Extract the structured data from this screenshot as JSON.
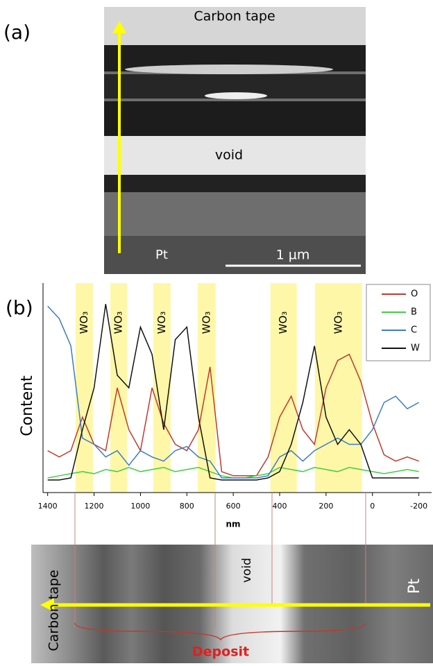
{
  "panel_a": {
    "label": "(a)",
    "top_text": "Carbon tape",
    "void_text": "void",
    "bottom_text": "Pt",
    "scale_bar": "1 µm"
  },
  "chart_data": {
    "type": "line",
    "panel_label": "(b)",
    "x_label": "nm",
    "y_label": "Content",
    "x": [
      1400,
      1350,
      1300,
      1250,
      1200,
      1150,
      1100,
      1050,
      1000,
      950,
      900,
      850,
      800,
      750,
      700,
      650,
      600,
      550,
      500,
      450,
      400,
      350,
      300,
      250,
      200,
      150,
      100,
      50,
      0,
      -50,
      -100,
      -150,
      -200
    ],
    "xlim": [
      1420,
      -255
    ],
    "ylim": [
      0,
      100
    ],
    "xticks": [
      1400,
      1200,
      1000,
      800,
      600,
      400,
      200,
      0,
      -200
    ],
    "legend": "upper right",
    "series": [
      {
        "name": "O",
        "color": "#c0392b",
        "values": [
          20,
          17,
          20,
          36,
          23,
          20,
          50,
          30,
          20,
          50,
          33,
          23,
          20,
          30,
          60,
          10,
          8,
          8,
          8,
          17,
          36,
          46,
          30,
          23,
          50,
          63,
          66,
          53,
          33,
          18,
          15,
          17,
          15
        ]
      },
      {
        "name": "B",
        "color": "#3fcf3f",
        "values": [
          7,
          8,
          9,
          10,
          9,
          11,
          10,
          12,
          10,
          11,
          12,
          10,
          11,
          12,
          10,
          8,
          7,
          7,
          8,
          9,
          12,
          11,
          10,
          12,
          11,
          10,
          12,
          11,
          10,
          9,
          10,
          11,
          10
        ]
      },
      {
        "name": "C",
        "color": "#3a7cc7",
        "values": [
          89,
          83,
          70,
          26,
          23,
          17,
          20,
          13,
          20,
          17,
          15,
          20,
          22,
          17,
          15,
          7,
          7,
          7,
          7,
          8,
          17,
          20,
          15,
          20,
          23,
          26,
          23,
          23,
          30,
          43,
          46,
          40,
          43
        ]
      },
      {
        "name": "W",
        "color": "#111111",
        "values": [
          6,
          6,
          7,
          30,
          50,
          90,
          56,
          50,
          79,
          66,
          30,
          73,
          79,
          36,
          7,
          6,
          6,
          6,
          6,
          7,
          10,
          23,
          43,
          70,
          36,
          23,
          30,
          23,
          7,
          7,
          7,
          7,
          7
        ]
      }
    ],
    "annotations": [
      {
        "text": "WO₃",
        "x": [
          1280,
          1205
        ]
      },
      {
        "text": "WO₃",
        "x": [
          1130,
          1058
        ]
      },
      {
        "text": "WO₃",
        "x": [
          945,
          870
        ]
      },
      {
        "text": "WO₃",
        "x": [
          753,
          676
        ]
      },
      {
        "text": "WO₃",
        "x": [
          440,
          326
        ]
      },
      {
        "text": "WO₃",
        "x": [
          248,
          45
        ]
      }
    ]
  },
  "panel_c": {
    "left_text": "Carbon tape",
    "void_text": "void",
    "right_text": "Pt",
    "deposit_text": "Deposit"
  }
}
